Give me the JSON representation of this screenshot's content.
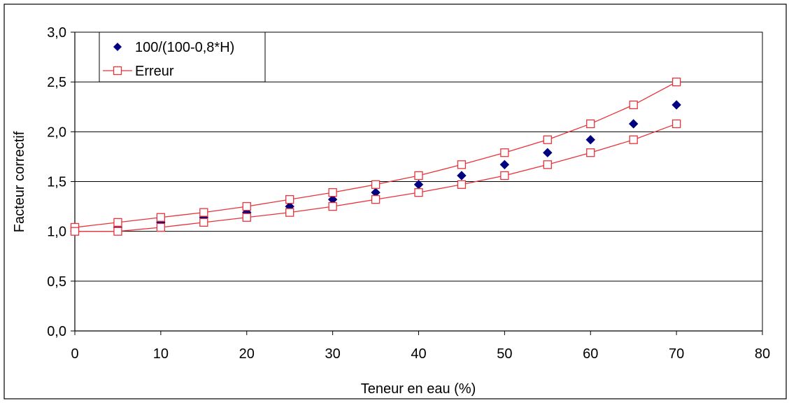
{
  "chart_data": {
    "type": "scatter",
    "title": "",
    "xlabel": "Teneur en eau (%)",
    "ylabel": "Facteur correctif",
    "xlim": [
      0,
      80
    ],
    "ylim": [
      0,
      3
    ],
    "x_ticks": [
      0,
      10,
      20,
      30,
      40,
      50,
      60,
      70,
      80
    ],
    "x_tick_labels": [
      "0",
      "10",
      "20",
      "30",
      "40",
      "50",
      "60",
      "70",
      "80"
    ],
    "y_ticks": [
      0,
      0.5,
      1,
      1.5,
      2,
      2.5,
      3
    ],
    "y_tick_labels": [
      "0,0",
      "0,5",
      "1,0",
      "1,5",
      "2,0",
      "2,5",
      "3,0"
    ],
    "grid": "horizontal",
    "legend_position": "top-left",
    "series": [
      {
        "name": "100/(100-0,8*H)",
        "marker": "diamond",
        "color": "#000080",
        "x": [
          0,
          5,
          10,
          15,
          20,
          25,
          30,
          35,
          40,
          45,
          50,
          55,
          60,
          65,
          70
        ],
        "y": [
          1.0,
          1.04,
          1.09,
          1.14,
          1.19,
          1.25,
          1.32,
          1.39,
          1.47,
          1.56,
          1.67,
          1.79,
          1.92,
          2.08,
          2.27
        ]
      },
      {
        "name": "Erreur",
        "marker": "square-open",
        "color": "#e8333a",
        "line": true,
        "x": [
          0,
          5,
          10,
          15,
          20,
          25,
          30,
          35,
          40,
          45,
          50,
          55,
          60,
          65,
          70
        ],
        "y": [
          1.04,
          1.09,
          1.14,
          1.19,
          1.25,
          1.32,
          1.39,
          1.47,
          1.56,
          1.67,
          1.79,
          1.92,
          2.08,
          2.27,
          2.5
        ]
      },
      {
        "name": "",
        "marker": "square-open",
        "color": "#e8333a",
        "line": true,
        "x": [
          0,
          5,
          10,
          15,
          20,
          25,
          30,
          35,
          40,
          45,
          50,
          55,
          60,
          65,
          70
        ],
        "y": [
          1.0,
          1.0,
          1.04,
          1.09,
          1.14,
          1.19,
          1.25,
          1.32,
          1.39,
          1.47,
          1.56,
          1.67,
          1.79,
          1.92,
          2.08
        ]
      }
    ],
    "legend_entries": [
      {
        "label": "100/(100-0,8*H)",
        "marker": "diamond",
        "color": "#000080"
      },
      {
        "label": "Erreur",
        "marker": "square-open",
        "color": "#e8333a"
      }
    ]
  }
}
